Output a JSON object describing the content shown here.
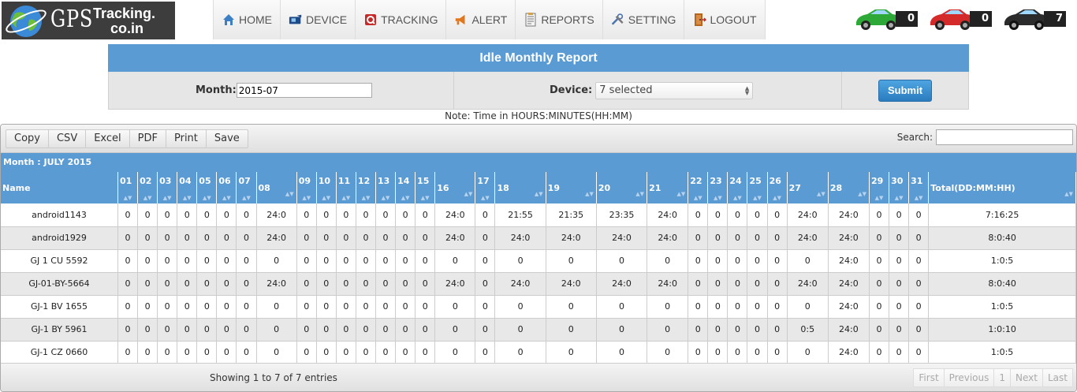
{
  "logo": {
    "gps": "GPS",
    "tracking": "Tracking.",
    "domain": "co.in"
  },
  "nav": [
    {
      "label": "HOME",
      "icon": "home-icon"
    },
    {
      "label": "DEVICE",
      "icon": "device-icon"
    },
    {
      "label": "TRACKING",
      "icon": "tracking-icon"
    },
    {
      "label": "ALERT",
      "icon": "alert-icon"
    },
    {
      "label": "REPORTS",
      "icon": "reports-icon"
    },
    {
      "label": "SETTING",
      "icon": "setting-icon"
    },
    {
      "label": "LOGOUT",
      "icon": "logout-icon"
    }
  ],
  "vehicle_status": [
    {
      "color": "#2ea836",
      "count": "0",
      "icon": "green-car-icon"
    },
    {
      "color": "#d42a2a",
      "count": "0",
      "icon": "red-car-icon"
    },
    {
      "color": "#2b2b2b",
      "count": "7",
      "icon": "black-car-icon"
    }
  ],
  "report": {
    "title": "Idle Monthly Report",
    "month_label": "Month:",
    "month_value": "2015-07",
    "device_label": "Device:",
    "device_value": "7 selected",
    "submit_label": "Submit"
  },
  "note": "Note: Time in HOURS:MINUTES(HH:MM)",
  "table_tools": [
    "Copy",
    "CSV",
    "Excel",
    "PDF",
    "Print",
    "Save"
  ],
  "search_label": "Search:",
  "month_caption": "Month : JULY 2015",
  "columns": {
    "name": "Name",
    "days": [
      "01",
      "02",
      "03",
      "04",
      "05",
      "06",
      "07",
      "08",
      "09",
      "10",
      "11",
      "12",
      "13",
      "14",
      "15",
      "16",
      "17",
      "18",
      "19",
      "20",
      "21",
      "22",
      "23",
      "24",
      "25",
      "26",
      "27",
      "28",
      "29",
      "30",
      "31"
    ],
    "total": "Total(DD:MM:HH)"
  },
  "rows": [
    {
      "name": "android1143",
      "values": [
        "0",
        "0",
        "0",
        "0",
        "0",
        "0",
        "0",
        "24:0",
        "0",
        "0",
        "0",
        "0",
        "0",
        "0",
        "0",
        "24:0",
        "0",
        "21:55",
        "21:35",
        "23:35",
        "24:0",
        "0",
        "0",
        "0",
        "0",
        "0",
        "24:0",
        "24:0",
        "0",
        "0",
        "0"
      ],
      "total": "7:16:25"
    },
    {
      "name": "android1929",
      "values": [
        "0",
        "0",
        "0",
        "0",
        "0",
        "0",
        "0",
        "24:0",
        "0",
        "0",
        "0",
        "0",
        "0",
        "0",
        "0",
        "24:0",
        "0",
        "24:0",
        "24:0",
        "24:0",
        "24:0",
        "0",
        "0",
        "0",
        "0",
        "0",
        "24:0",
        "24:0",
        "0",
        "0",
        "0"
      ],
      "total": "8:0:40"
    },
    {
      "name": "GJ 1 CU 5592",
      "values": [
        "0",
        "0",
        "0",
        "0",
        "0",
        "0",
        "0",
        "0",
        "0",
        "0",
        "0",
        "0",
        "0",
        "0",
        "0",
        "0",
        "0",
        "0",
        "0",
        "0",
        "0",
        "0",
        "0",
        "0",
        "0",
        "0",
        "0",
        "24:0",
        "0",
        "0",
        "0"
      ],
      "total": "1:0:5"
    },
    {
      "name": "GJ-01-BY-5664",
      "values": [
        "0",
        "0",
        "0",
        "0",
        "0",
        "0",
        "0",
        "24:0",
        "0",
        "0",
        "0",
        "0",
        "0",
        "0",
        "0",
        "24:0",
        "0",
        "24:0",
        "24:0",
        "24:0",
        "24:0",
        "0",
        "0",
        "0",
        "0",
        "0",
        "24:0",
        "24:0",
        "0",
        "0",
        "0"
      ],
      "total": "8:0:40"
    },
    {
      "name": "GJ-1 BV 1655",
      "values": [
        "0",
        "0",
        "0",
        "0",
        "0",
        "0",
        "0",
        "0",
        "0",
        "0",
        "0",
        "0",
        "0",
        "0",
        "0",
        "0",
        "0",
        "0",
        "0",
        "0",
        "0",
        "0",
        "0",
        "0",
        "0",
        "0",
        "0",
        "24:0",
        "0",
        "0",
        "0"
      ],
      "total": "1:0:5"
    },
    {
      "name": "GJ-1 BY 5961",
      "values": [
        "0",
        "0",
        "0",
        "0",
        "0",
        "0",
        "0",
        "0",
        "0",
        "0",
        "0",
        "0",
        "0",
        "0",
        "0",
        "0",
        "0",
        "0",
        "0",
        "0",
        "0",
        "0",
        "0",
        "0",
        "0",
        "0",
        "0:5",
        "24:0",
        "0",
        "0",
        "0"
      ],
      "total": "1:0:10"
    },
    {
      "name": "GJ-1 CZ 0660",
      "values": [
        "0",
        "0",
        "0",
        "0",
        "0",
        "0",
        "0",
        "0",
        "0",
        "0",
        "0",
        "0",
        "0",
        "0",
        "0",
        "0",
        "0",
        "0",
        "0",
        "0",
        "0",
        "0",
        "0",
        "0",
        "0",
        "0",
        "0",
        "24:0",
        "0",
        "0",
        "0"
      ],
      "total": "1:0:5"
    }
  ],
  "footer": {
    "info": "Showing 1 to 7 of 7 entries",
    "pager": [
      "First",
      "Previous",
      "1",
      "Next",
      "Last"
    ]
  }
}
